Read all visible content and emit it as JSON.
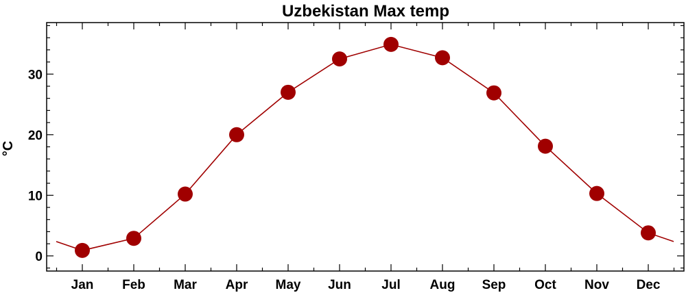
{
  "chart_data": {
    "type": "line",
    "title": "Uzbekistan Max temp",
    "xlabel": "",
    "ylabel": "°C",
    "categories": [
      "Jan",
      "Feb",
      "Mar",
      "Apr",
      "May",
      "Jun",
      "Jul",
      "Aug",
      "Sep",
      "Oct",
      "Nov",
      "Dec"
    ],
    "series": [
      {
        "values": [
          0.9,
          2.9,
          10.2,
          20.0,
          27.0,
          32.5,
          34.9,
          32.7,
          26.9,
          18.1,
          10.3,
          3.8
        ],
        "color": "#a00000"
      }
    ],
    "ylim": [
      -2.5,
      38.5
    ],
    "yticks": [
      0,
      10,
      20,
      30
    ],
    "grid": false,
    "legend": "none"
  }
}
